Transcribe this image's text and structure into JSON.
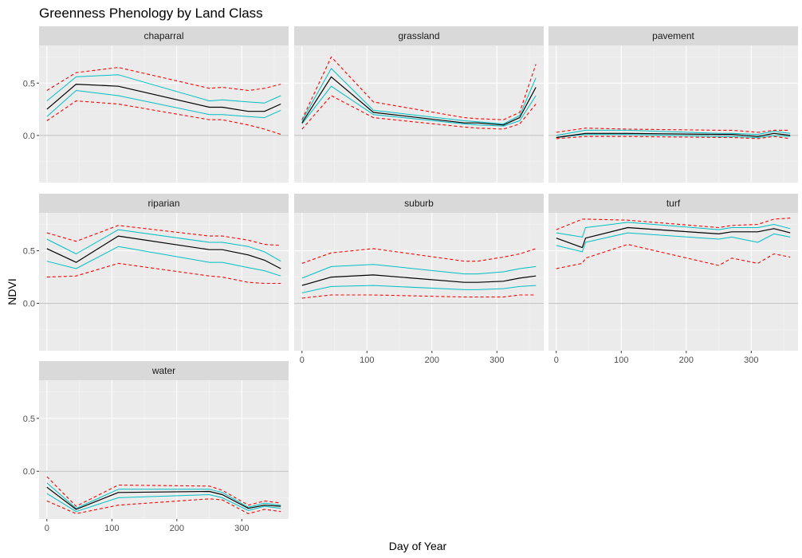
{
  "chart_data": {
    "type": "line",
    "title": "Greenness Phenology by Land Class",
    "xlabel": "Day of Year",
    "ylabel": "NDVI",
    "xlim": [
      -12,
      372
    ],
    "ylim": [
      -0.45,
      0.86
    ],
    "x_ticks": [
      0,
      100,
      200,
      300
    ],
    "y_ticks": [
      0.0,
      0.5
    ],
    "y_tick_labels": [
      "0.0",
      "0.5"
    ],
    "grid": true,
    "hline": 0,
    "x": [
      0,
      45,
      110,
      250,
      270,
      310,
      335,
      360
    ],
    "panels": [
      {
        "name": "chaparral",
        "mean": [
          0.25,
          0.49,
          0.47,
          0.27,
          0.27,
          0.23,
          0.23,
          0.3
        ],
        "sd_high": [
          0.33,
          0.56,
          0.58,
          0.33,
          0.34,
          0.32,
          0.31,
          0.38
        ],
        "sd_low": [
          0.18,
          0.43,
          0.38,
          0.2,
          0.2,
          0.18,
          0.17,
          0.24
        ],
        "q_high": [
          0.43,
          0.6,
          0.65,
          0.45,
          0.46,
          0.43,
          0.45,
          0.49
        ],
        "q_low": [
          0.14,
          0.33,
          0.3,
          0.15,
          0.15,
          0.1,
          0.06,
          0.01
        ]
      },
      {
        "name": "grassland",
        "x": [
          0,
          45,
          110,
          250,
          270,
          310,
          335,
          360
        ],
        "mean": [
          0.12,
          0.56,
          0.22,
          0.12,
          0.12,
          0.1,
          0.17,
          0.46
        ],
        "sd_high": [
          0.14,
          0.64,
          0.24,
          0.14,
          0.13,
          0.11,
          0.19,
          0.55
        ],
        "sd_low": [
          0.11,
          0.47,
          0.2,
          0.11,
          0.1,
          0.09,
          0.14,
          0.38
        ],
        "q_high": [
          0.15,
          0.75,
          0.32,
          0.17,
          0.16,
          0.15,
          0.22,
          0.68
        ],
        "q_low": [
          0.06,
          0.38,
          0.17,
          0.08,
          0.07,
          0.06,
          0.11,
          0.3
        ]
      },
      {
        "name": "pavement",
        "x": [
          0,
          45,
          110,
          250,
          270,
          310,
          335,
          360
        ],
        "mean": [
          -0.02,
          0.02,
          0.02,
          0.01,
          0.01,
          -0.01,
          0.02,
          0.0
        ],
        "sd_high": [
          0.0,
          0.05,
          0.05,
          0.02,
          0.02,
          0.01,
          0.04,
          0.02
        ],
        "sd_low": [
          -0.02,
          0.01,
          0.01,
          -0.01,
          -0.01,
          -0.02,
          0.0,
          -0.01
        ],
        "q_high": [
          0.03,
          0.07,
          0.06,
          0.05,
          0.05,
          0.03,
          0.05,
          0.05
        ],
        "q_low": [
          -0.03,
          -0.01,
          -0.01,
          -0.02,
          -0.02,
          -0.03,
          -0.01,
          -0.03
        ]
      },
      {
        "name": "riparian",
        "x": [
          0,
          45,
          110,
          250,
          270,
          310,
          335,
          360
        ],
        "mean": [
          0.52,
          0.39,
          0.64,
          0.51,
          0.51,
          0.46,
          0.41,
          0.33
        ],
        "sd_high": [
          0.61,
          0.47,
          0.7,
          0.58,
          0.58,
          0.54,
          0.49,
          0.4
        ],
        "sd_low": [
          0.4,
          0.33,
          0.54,
          0.39,
          0.39,
          0.34,
          0.31,
          0.26
        ],
        "q_high": [
          0.67,
          0.59,
          0.74,
          0.64,
          0.64,
          0.6,
          0.56,
          0.55
        ],
        "q_low": [
          0.25,
          0.26,
          0.38,
          0.26,
          0.25,
          0.2,
          0.19,
          0.19
        ]
      },
      {
        "name": "suburb",
        "x": [
          0,
          45,
          110,
          250,
          270,
          310,
          335,
          360
        ],
        "mean": [
          0.17,
          0.25,
          0.27,
          0.2,
          0.2,
          0.21,
          0.24,
          0.26
        ],
        "sd_high": [
          0.24,
          0.35,
          0.37,
          0.28,
          0.28,
          0.3,
          0.33,
          0.35
        ],
        "sd_low": [
          0.1,
          0.16,
          0.17,
          0.13,
          0.13,
          0.14,
          0.16,
          0.17
        ],
        "q_high": [
          0.38,
          0.48,
          0.52,
          0.4,
          0.4,
          0.44,
          0.47,
          0.52
        ],
        "q_low": [
          0.05,
          0.08,
          0.08,
          0.06,
          0.06,
          0.06,
          0.08,
          0.08
        ]
      },
      {
        "name": "turf",
        "x": [
          0,
          40,
          45,
          110,
          250,
          270,
          310,
          335,
          360
        ],
        "mean": [
          0.62,
          0.53,
          0.62,
          0.72,
          0.66,
          0.68,
          0.68,
          0.71,
          0.67
        ],
        "sd_high": [
          0.67,
          0.63,
          0.72,
          0.77,
          0.7,
          0.72,
          0.72,
          0.75,
          0.71
        ],
        "sd_low": [
          0.55,
          0.49,
          0.58,
          0.67,
          0.61,
          0.63,
          0.58,
          0.66,
          0.63
        ],
        "q_high": [
          0.7,
          0.8,
          0.8,
          0.79,
          0.72,
          0.74,
          0.75,
          0.8,
          0.81
        ],
        "q_low": [
          0.33,
          0.38,
          0.43,
          0.56,
          0.36,
          0.43,
          0.38,
          0.47,
          0.44
        ]
      },
      {
        "name": "water",
        "x": [
          0,
          45,
          110,
          250,
          270,
          310,
          335,
          360
        ],
        "mean": [
          -0.15,
          -0.36,
          -0.2,
          -0.19,
          -0.22,
          -0.35,
          -0.32,
          -0.33
        ],
        "sd_high": [
          -0.11,
          -0.35,
          -0.17,
          -0.17,
          -0.2,
          -0.34,
          -0.3,
          -0.32
        ],
        "sd_low": [
          -0.21,
          -0.38,
          -0.25,
          -0.22,
          -0.25,
          -0.37,
          -0.33,
          -0.35
        ],
        "q_high": [
          -0.05,
          -0.33,
          -0.13,
          -0.14,
          -0.18,
          -0.32,
          -0.28,
          -0.3
        ],
        "q_low": [
          -0.28,
          -0.4,
          -0.32,
          -0.26,
          -0.27,
          -0.4,
          -0.36,
          -0.38
        ]
      }
    ]
  }
}
